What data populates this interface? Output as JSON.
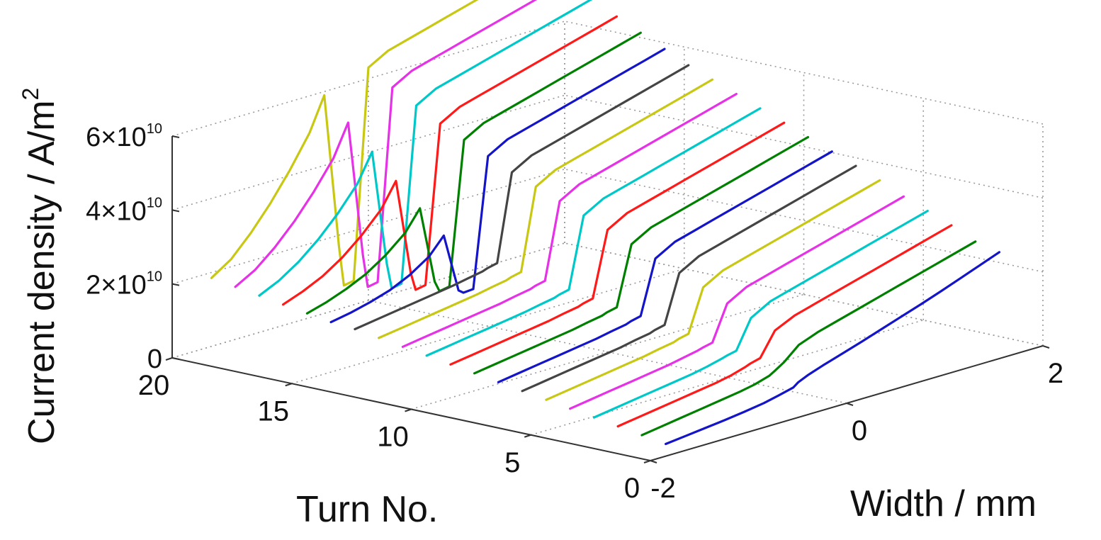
{
  "chart_data": {
    "type": "line",
    "projection": "3d",
    "title": "",
    "xlabel": "Turn No.",
    "ylabel": "Width / mm",
    "zlabel": "Current density / A/m",
    "zlabel_superscript": "2",
    "xlim": [
      0,
      20
    ],
    "ylim": [
      -2,
      2
    ],
    "zlim": [
      0,
      60000000000
    ],
    "x_ticks": [
      "0",
      "5",
      "10",
      "15",
      "20"
    ],
    "y_ticks": [
      "-2",
      "0",
      "2"
    ],
    "z_ticks": [
      {
        "mantissa": "0",
        "times": "",
        "base": "",
        "exp": ""
      },
      {
        "mantissa": "2",
        "times": "×",
        "base": "10",
        "exp": "10"
      },
      {
        "mantissa": "4",
        "times": "×",
        "base": "10",
        "exp": "10"
      },
      {
        "mantissa": "6",
        "times": "×",
        "base": "10",
        "exp": "10"
      }
    ],
    "grid": true,
    "width_samples_mm": [
      -1.6,
      -1.4,
      -1.2,
      -1.0,
      -0.8,
      -0.6,
      -0.45,
      -0.3,
      -0.25,
      -0.15,
      0.0,
      0.2,
      0.4,
      0.6,
      0.8,
      1.0,
      1.2,
      1.4,
      1.6,
      1.8
    ],
    "series": [
      {
        "turn": 1,
        "color": "#1414c8",
        "values": [
          0.0,
          600000000.0,
          1200000000.0,
          1800000000.0,
          2500000000.0,
          3300000000.0,
          4200000000.0,
          5200000000.0,
          6200000000.0,
          7400000000.0,
          8800000000.0,
          10500000000.0,
          12200000000.0,
          14000000000.0,
          15800000000.0,
          17600000000.0,
          19500000000.0,
          21500000000.0,
          23500000000.0,
          25500000000.0
        ]
      },
      {
        "turn": 2,
        "color": "#008000",
        "values": [
          1000000000.0,
          1800000000.0,
          2600000000.0,
          3400000000.0,
          4200000000.0,
          5000000000.0,
          5800000000.0,
          7000000000.0,
          7800000000.0,
          9500000000.0,
          13000000000.0,
          15000000000.0,
          16500000000.0,
          18000000000.0,
          19500000000.0,
          21000000000.0,
          22500000000.0,
          24000000000.0,
          25500000000.0,
          27000000000.0
        ]
      },
      {
        "turn": 3,
        "color": "#ff1a1a",
        "values": [
          2000000000.0,
          2800000000.0,
          3600000000.0,
          4400000000.0,
          5200000000.0,
          6000000000.0,
          6800000000.0,
          8000000000.0,
          8500000000.0,
          9200000000.0,
          15500000000.0,
          18000000000.0,
          19500000000.0,
          21000000000.0,
          22500000000.0,
          24000000000.0,
          25500000000.0,
          27000000000.0,
          28500000000.0,
          30000000000.0
        ]
      },
      {
        "turn": 4,
        "color": "#00c8c8",
        "values": [
          3000000000.0,
          3800000000.0,
          4600000000.0,
          5400000000.0,
          6200000000.0,
          7000000000.0,
          7800000000.0,
          8800000000.0,
          9200000000.0,
          9800000000.0,
          17500000000.0,
          20500000000.0,
          22000000000.0,
          23500000000.0,
          25000000000.0,
          26500000000.0,
          28000000000.0,
          29500000000.0,
          31000000000.0,
          32500000000.0
        ]
      },
      {
        "turn": 5,
        "color": "#e632e6",
        "values": [
          4000000000.0,
          4800000000.0,
          5600000000.0,
          6400000000.0,
          7200000000.0,
          8000000000.0,
          8800000000.0,
          9600000000.0,
          10000000000.0,
          10600000000.0,
          20000000000.0,
          23000000000.0,
          24500000000.0,
          26000000000.0,
          27500000000.0,
          29000000000.0,
          30500000000.0,
          32000000000.0,
          33500000000.0,
          35000000000.0
        ]
      },
      {
        "turn": 6,
        "color": "#c8c814",
        "values": [
          5000000000.0,
          5800000000.0,
          6600000000.0,
          7400000000.0,
          8200000000.0,
          9000000000.0,
          9800000000.0,
          10500000000.0,
          11000000000.0,
          11600000000.0,
          23000000000.0,
          26000000000.0,
          27500000000.0,
          29000000000.0,
          30500000000.0,
          32000000000.0,
          33500000000.0,
          35000000000.0,
          36500000000.0,
          38000000000.0
        ]
      },
      {
        "turn": 7,
        "color": "#444444",
        "values": [
          6000000000.0,
          6800000000.0,
          7600000000.0,
          8400000000.0,
          9200000000.0,
          10000000000.0,
          10800000000.0,
          11500000000.0,
          12000000000.0,
          12600000000.0,
          25500000000.0,
          28500000000.0,
          30000000000.0,
          31500000000.0,
          33000000000.0,
          34500000000.0,
          36000000000.0,
          37500000000.0,
          39000000000.0,
          40500000000.0
        ]
      },
      {
        "turn": 8,
        "color": "#1414c8",
        "values": [
          7000000000.0,
          7800000000.0,
          8600000000.0,
          9400000000.0,
          10200000000.0,
          11000000000.0,
          11800000000.0,
          12500000000.0,
          13000000000.0,
          13600000000.0,
          28000000000.0,
          31000000000.0,
          32500000000.0,
          34000000000.0,
          35500000000.0,
          37000000000.0,
          38500000000.0,
          40000000000.0,
          41500000000.0,
          43000000000.0
        ]
      },
      {
        "turn": 9,
        "color": "#008000",
        "values": [
          8000000000.0,
          8800000000.0,
          9600000000.0,
          10400000000.0,
          11200000000.0,
          12000000000.0,
          12800000000.0,
          13500000000.0,
          14000000000.0,
          14600000000.0,
          30500000000.0,
          33500000000.0,
          35000000000.0,
          36500000000.0,
          38000000000.0,
          39500000000.0,
          41000000000.0,
          42500000000.0,
          44000000000.0,
          45500000000.0
        ]
      },
      {
        "turn": 10,
        "color": "#ff1a1a",
        "values": [
          9000000000.0,
          9800000000.0,
          10600000000.0,
          11400000000.0,
          12200000000.0,
          13000000000.0,
          13800000000.0,
          14500000000.0,
          15000000000.0,
          15600000000.0,
          33000000000.0,
          36000000000.0,
          37500000000.0,
          39000000000.0,
          40500000000.0,
          42000000000.0,
          43500000000.0,
          45000000000.0,
          46500000000.0,
          48000000000.0
        ]
      },
      {
        "turn": 11,
        "color": "#00c8c8",
        "values": [
          10000000000.0,
          10800000000.0,
          11600000000.0,
          12400000000.0,
          13200000000.0,
          14000000000.0,
          14800000000.0,
          15500000000.0,
          16000000000.0,
          16600000000.0,
          35500000000.0,
          38500000000.0,
          40000000000.0,
          41500000000.0,
          43000000000.0,
          44500000000.0,
          46000000000.0,
          47500000000.0,
          49000000000.0,
          50500000000.0
        ]
      },
      {
        "turn": 12,
        "color": "#e632e6",
        "values": [
          11000000000.0,
          11800000000.0,
          12600000000.0,
          13400000000.0,
          14200000000.0,
          15000000000.0,
          15800000000.0,
          16500000000.0,
          17000000000.0,
          17600000000.0,
          38000000000.0,
          41000000000.0,
          42500000000.0,
          44000000000.0,
          45500000000.0,
          47000000000.0,
          48500000000.0,
          50000000000.0,
          51500000000.0,
          53000000000.0
        ]
      },
      {
        "turn": 13,
        "color": "#c8c814",
        "values": [
          12000000000.0,
          12800000000.0,
          13600000000.0,
          14400000000.0,
          15200000000.0,
          16000000000.0,
          16800000000.0,
          17500000000.0,
          18000000000.0,
          18600000000.0,
          40500000000.0,
          43500000000.0,
          45000000000.0,
          46500000000.0,
          48000000000.0,
          49500000000.0,
          51000000000.0,
          52500000000.0,
          54000000000.0,
          55500000000.0
        ]
      },
      {
        "turn": 14,
        "color": "#444444",
        "values": [
          13000000000.0,
          13800000000.0,
          14600000000.0,
          15400000000.0,
          16200000000.0,
          17000000000.0,
          17800000000.0,
          18500000000.0,
          19000000000.0,
          19600000000.0,
          43000000000.0,
          46000000000.0,
          47500000000.0,
          49000000000.0,
          50500000000.0,
          52000000000.0,
          53500000000.0,
          55000000000.0,
          56500000000.0,
          58000000000.0
        ]
      },
      {
        "turn": 15,
        "color": "#1414c8",
        "values": [
          13500000000.0,
          14500000000.0,
          15800000000.0,
          17500000000.0,
          20000000000.0,
          23500000000.0,
          28000000000.0,
          12000000000.0,
          11000000000.0,
          11200000000.0,
          46000000000.0,
          49000000000.0,
          50500000000.0,
          52000000000.0,
          53500000000.0,
          55000000000.0,
          56500000000.0,
          58000000000.0,
          59500000000.0,
          61000000000.0
        ]
      },
      {
        "turn": 16,
        "color": "#008000",
        "values": [
          14500000000.0,
          16000000000.0,
          18000000000.0,
          20500000000.0,
          24000000000.0,
          28500000000.0,
          34000000000.0,
          13000000000.0,
          10000000000.0,
          10500000000.0,
          49000000000.0,
          52000000000.0,
          53500000000.0,
          55000000000.0,
          56500000000.0,
          58000000000.0,
          59500000000.0,
          61000000000.0,
          62500000000.0,
          64000000000.0
        ]
      },
      {
        "turn": 17,
        "color": "#ff1a1a",
        "values": [
          15500000000.0,
          17500000000.0,
          20000000000.0,
          23500000000.0,
          28000000000.0,
          33500000000.0,
          40000000000.0,
          14000000000.0,
          9000000000.0,
          9500000000.0,
          52000000000.0,
          55000000000.0,
          56500000000.0,
          58000000000.0,
          59500000000.0,
          61000000000.0,
          62500000000.0,
          64000000000.0,
          65500000000.0,
          67000000000.0
        ]
      },
      {
        "turn": 18,
        "color": "#00c8c8",
        "values": [
          16500000000.0,
          19000000000.0,
          22500000000.0,
          27000000000.0,
          32500000000.0,
          39000000000.0,
          46500000000.0,
          15000000000.0,
          8000000000.0,
          8500000000.0,
          55500000000.0,
          58500000000.0,
          60000000000.0,
          61500000000.0,
          63000000000.0,
          64500000000.0,
          66000000000.0,
          67500000000.0,
          69000000000.0,
          70500000000.0
        ]
      },
      {
        "turn": 19,
        "color": "#e632e6",
        "values": [
          17500000000.0,
          20500000000.0,
          25000000000.0,
          30500000000.0,
          37000000000.0,
          44500000000.0,
          53000000000.0,
          16000000000.0,
          7000000000.0,
          7500000000.0,
          59000000000.0,
          62000000000.0,
          63500000000.0,
          65000000000.0,
          66500000000.0,
          68000000000.0,
          69500000000.0,
          71000000000.0,
          72500000000.0,
          74000000000.0
        ]
      },
      {
        "turn": 20,
        "color": "#c8c814",
        "values": [
          18500000000.0,
          22000000000.0,
          27500000000.0,
          34000000000.0,
          41500000000.0,
          50000000000.0,
          59000000000.0,
          17000000000.0,
          6000000000.0,
          6500000000.0,
          63000000000.0,
          66000000000.0,
          67500000000.0,
          69000000000.0,
          70500000000.0,
          72000000000.0,
          73500000000.0,
          75000000000.0,
          76500000000.0,
          78000000000.0
        ]
      }
    ]
  }
}
